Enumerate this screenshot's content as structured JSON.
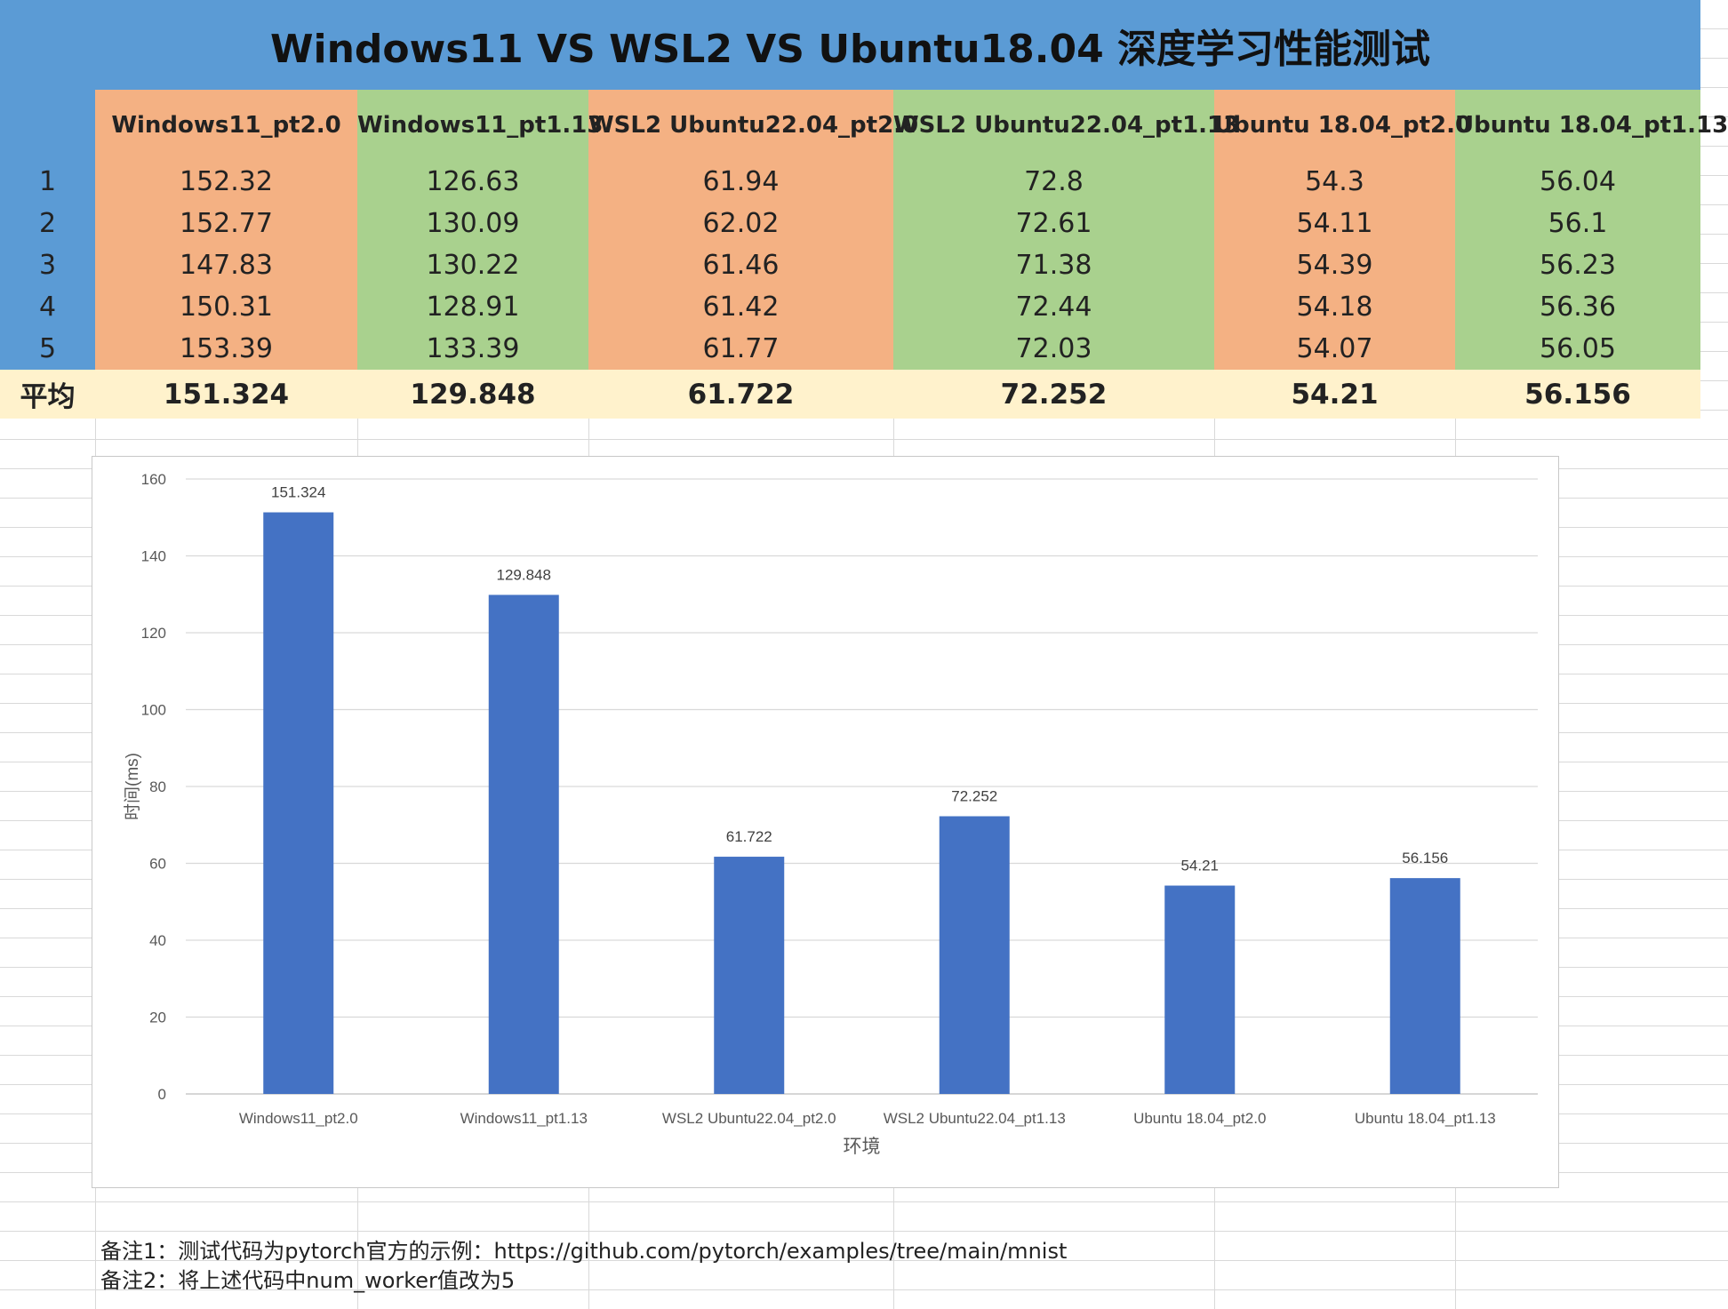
{
  "title": "Windows11 VS WSL2 VS Ubuntu18.04 深度学习性能测试",
  "table": {
    "headers": [
      "Windows11_pt2.0",
      "Windows11_pt1.13",
      "WSL2 Ubuntu22.04_pt2.0",
      "WSL2 Ubuntu22.04_pt1.13",
      "Ubuntu 18.04_pt2.0",
      "Ubuntu 18.04_pt1.13"
    ],
    "column_colors": [
      "#f4b183",
      "#a9d18e",
      "#f4b183",
      "#a9d18e",
      "#f4b183",
      "#a9d18e"
    ],
    "rows": [
      {
        "index": "1",
        "values": [
          "152.32",
          "126.63",
          "61.94",
          "72.8",
          "54.3",
          "56.04"
        ]
      },
      {
        "index": "2",
        "values": [
          "152.77",
          "130.09",
          "62.02",
          "72.61",
          "54.11",
          "56.1"
        ]
      },
      {
        "index": "3",
        "values": [
          "147.83",
          "130.22",
          "61.46",
          "71.38",
          "54.39",
          "56.23"
        ]
      },
      {
        "index": "4",
        "values": [
          "150.31",
          "128.91",
          "61.42",
          "72.44",
          "54.18",
          "56.36"
        ]
      },
      {
        "index": "5",
        "values": [
          "153.39",
          "133.39",
          "61.77",
          "72.03",
          "54.07",
          "56.05"
        ]
      }
    ],
    "average_label": "平均",
    "averages": [
      "151.324",
      "129.848",
      "61.722",
      "72.252",
      "54.21",
      "56.156"
    ]
  },
  "chart_data": {
    "type": "bar",
    "categories": [
      "Windows11_pt2.0",
      "Windows11_pt1.13",
      "WSL2 Ubuntu22.04_pt2.0",
      "WSL2 Ubuntu22.04_pt1.13",
      "Ubuntu 18.04_pt2.0",
      "Ubuntu 18.04_pt1.13"
    ],
    "values": [
      151.324,
      129.848,
      61.722,
      72.252,
      54.21,
      56.156
    ],
    "data_labels": [
      "151.324",
      "129.848",
      "61.722",
      "72.252",
      "54.21",
      "56.156"
    ],
    "title": "",
    "xlabel": "环境",
    "ylabel": "时间(ms)",
    "ylim": [
      0,
      160
    ],
    "yticks": [
      0,
      20,
      40,
      60,
      80,
      100,
      120,
      140,
      160
    ],
    "grid": true,
    "bar_color": "#4472c4"
  },
  "notes": [
    "备注1：测试代码为pytorch官方的示例：https://github.com/pytorch/examples/tree/main/mnist",
    "备注2：将上述代码中num_worker值改为5"
  ]
}
